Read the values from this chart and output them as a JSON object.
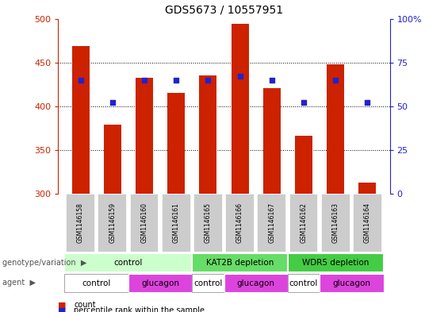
{
  "title": "GDS5673 / 10557951",
  "samples": [
    "GSM1146158",
    "GSM1146159",
    "GSM1146160",
    "GSM1146161",
    "GSM1146165",
    "GSM1146166",
    "GSM1146167",
    "GSM1146162",
    "GSM1146163",
    "GSM1146164"
  ],
  "counts": [
    469,
    379,
    432,
    415,
    435,
    494,
    421,
    366,
    448,
    312
  ],
  "percentile_ranks": [
    65,
    52,
    65,
    65,
    65,
    67,
    65,
    52,
    65,
    52
  ],
  "ylim_left": [
    300,
    500
  ],
  "ylim_right": [
    0,
    100
  ],
  "yticks_left": [
    300,
    350,
    400,
    450,
    500
  ],
  "yticks_right": [
    0,
    25,
    50,
    75,
    100
  ],
  "bar_color": "#cc2200",
  "dot_color": "#2222cc",
  "bar_bottom": 300,
  "genotype_groups": [
    {
      "label": "control",
      "start": 0,
      "end": 4,
      "color": "#ccffcc"
    },
    {
      "label": "KAT2B depletion",
      "start": 4,
      "end": 7,
      "color": "#66dd66"
    },
    {
      "label": "WDR5 depletion",
      "start": 7,
      "end": 10,
      "color": "#44cc44"
    }
  ],
  "agent_groups": [
    {
      "label": "control",
      "start": 0,
      "end": 2,
      "color": "#ffffff"
    },
    {
      "label": "glucagon",
      "start": 2,
      "end": 4,
      "color": "#dd44dd"
    },
    {
      "label": "control",
      "start": 4,
      "end": 5,
      "color": "#ffffff"
    },
    {
      "label": "glucagon",
      "start": 5,
      "end": 7,
      "color": "#dd44dd"
    },
    {
      "label": "control",
      "start": 7,
      "end": 8,
      "color": "#ffffff"
    },
    {
      "label": "glucagon",
      "start": 8,
      "end": 10,
      "color": "#dd44dd"
    }
  ],
  "legend_count_color": "#cc2200",
  "legend_pct_color": "#2222cc",
  "left_axis_color": "#cc2200",
  "right_axis_color": "#2222cc",
  "gsm_bg_color": "#cccccc",
  "genotype_label": "genotype/variation",
  "agent_label": "agent",
  "grid_levels": [
    350,
    400,
    450
  ],
  "figsize": [
    5.65,
    3.93
  ],
  "dpi": 100
}
